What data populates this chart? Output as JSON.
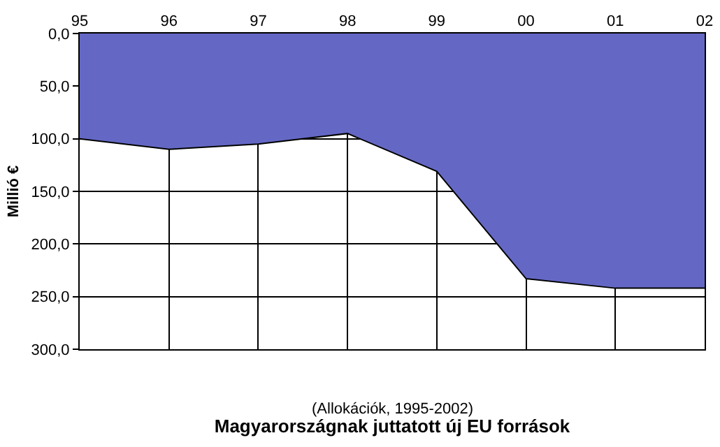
{
  "chart_data": {
    "type": "area",
    "title": "Magyarországnak juttatott új EU források",
    "subtitle": "(Allokációk, 1995-2002)",
    "ylabel": "Millió €",
    "categories": [
      "95",
      "96",
      "97",
      "98",
      "99",
      "00",
      "01",
      "02"
    ],
    "series": [
      {
        "color": "#6468c4",
        "values": [
          100,
          110,
          105,
          95,
          131,
          233,
          242,
          242
        ]
      }
    ],
    "ylim": [
      300,
      0
    ],
    "yticks": [
      {
        "value": 0,
        "label": "0,0"
      },
      {
        "value": 50,
        "label": "50,0"
      },
      {
        "value": 100,
        "label": "100,0"
      },
      {
        "value": 150,
        "label": "150,0"
      },
      {
        "value": 200,
        "label": "200,0"
      },
      {
        "value": 250,
        "label": "250,0"
      },
      {
        "value": 300,
        "label": "300,0"
      }
    ],
    "grid": true
  }
}
